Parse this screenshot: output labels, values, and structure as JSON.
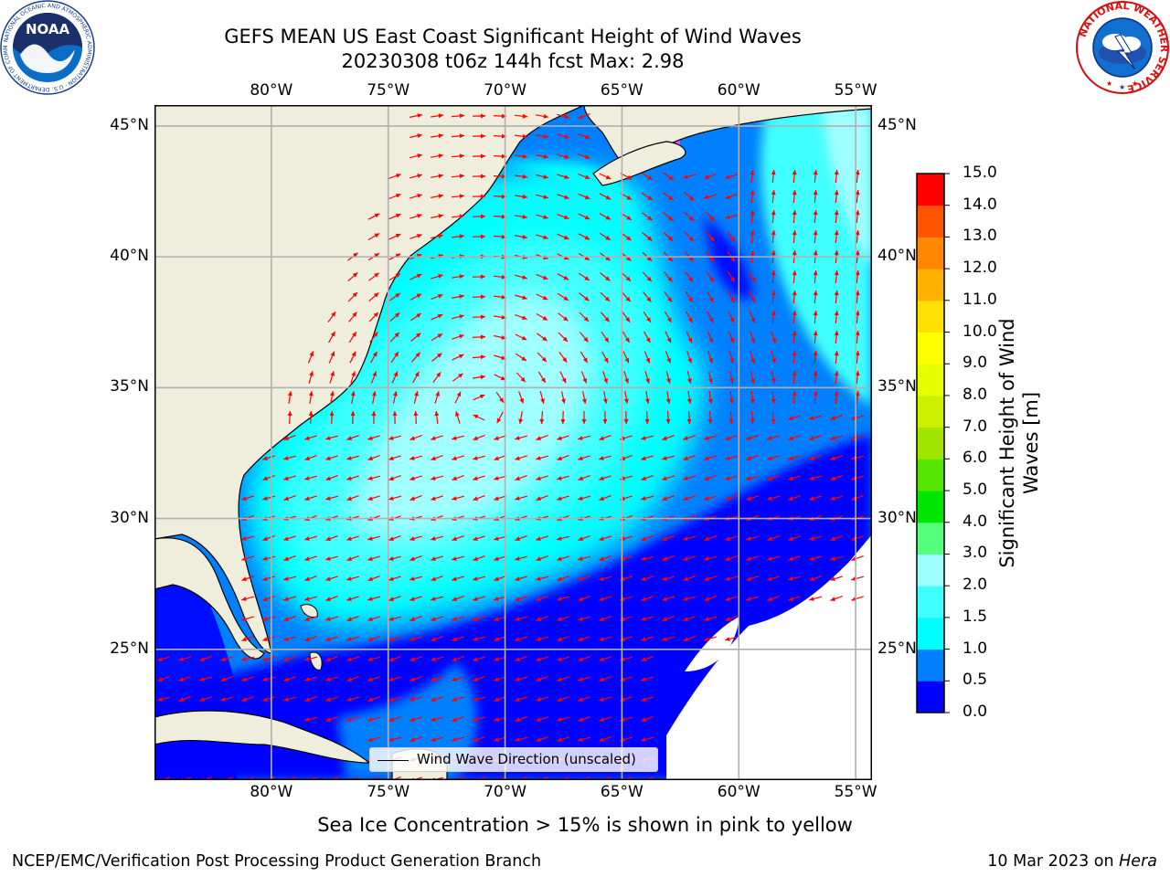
{
  "title": {
    "line1": "GEFS MEAN US East Coast Significant Height of Wind Waves",
    "line2": "20230308 t06z 144h fcst   Max: 2.98"
  },
  "map": {
    "lon_ticks": [
      "80°W",
      "75°W",
      "70°W",
      "65°W",
      "60°W",
      "55°W"
    ],
    "lat_ticks": [
      "45°N",
      "40°N",
      "35°N",
      "30°N",
      "25°N"
    ],
    "extent": {
      "lon_min": -85,
      "lon_max": -54.3,
      "lat_min": 20,
      "lat_max": 45.8
    },
    "legend_label": "Wind Wave Direction (unscaled)",
    "arrow_color": "#ff0000",
    "land_color": "#efeedc"
  },
  "colorbar": {
    "label_line1": "Significant Height of Wind",
    "label_line2": "Waves [m]",
    "levels": [
      "0.0",
      "0.5",
      "1.0",
      "1.5",
      "2.0",
      "3.0",
      "4.0",
      "5.0",
      "6.0",
      "7.0",
      "8.0",
      "9.0",
      "10.0",
      "11.0",
      "12.0",
      "13.0",
      "14.0",
      "15.0"
    ],
    "colors": [
      "#0000ff",
      "#0080ff",
      "#00ffff",
      "#40ffff",
      "#a0ffff",
      "#55ff80",
      "#00e600",
      "#55e600",
      "#a0e600",
      "#ccf000",
      "#e6ff00",
      "#ffff00",
      "#ffe000",
      "#ffb000",
      "#ff8800",
      "#ff5500",
      "#ff0000"
    ]
  },
  "logos": {
    "left_text": "NOAA",
    "left_ring_text": "NATIONAL OCEANIC AND ATMOSPHERIC ADMINISTRATION · U.S. DEPARTMENT OF COMMERCE",
    "right_ring_text": "NATIONAL WEATHER SERVICE"
  },
  "notes": {
    "sea_ice": "Sea Ice Concentration > 15% is shown in pink to yellow",
    "footer_left": "NCEP/EMC/Verification Post Processing Product Generation Branch",
    "footer_right_date": "10 Mar 2023 on ",
    "footer_right_machine": "Hera"
  }
}
